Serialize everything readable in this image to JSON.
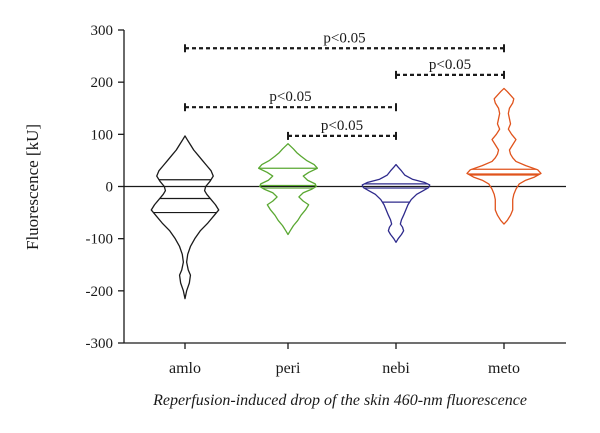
{
  "chart_data": {
    "type": "violin",
    "ylabel": "Fluorescence [kU]",
    "xlabel": "Reperfusion-induced drop of the skin 460-nm fluorescence",
    "ylim": [
      -300,
      300
    ],
    "yticks": [
      -300,
      -200,
      -100,
      0,
      100,
      200,
      300
    ],
    "categories": [
      "amlo",
      "peri",
      "nebi",
      "meto"
    ],
    "colors": {
      "amlo": "#1a1a1a",
      "peri": "#5aa832",
      "nebi": "#2e2a8c",
      "meto": "#e0531c"
    },
    "series": [
      {
        "category": "amlo",
        "min": -215,
        "max": 97,
        "quartiles": [
          -50,
          -23,
          13
        ],
        "density": [
          [
            -215,
            0
          ],
          [
            -200,
            1.5
          ],
          [
            -185,
            4
          ],
          [
            -170,
            5
          ],
          [
            -160,
            3
          ],
          [
            -145,
            1.5
          ],
          [
            -130,
            2.5
          ],
          [
            -115,
            5
          ],
          [
            -100,
            9
          ],
          [
            -85,
            14
          ],
          [
            -70,
            21
          ],
          [
            -55,
            27
          ],
          [
            -45,
            31
          ],
          [
            -35,
            28
          ],
          [
            -25,
            24
          ],
          [
            -15,
            20
          ],
          [
            -8,
            18
          ],
          [
            0,
            19
          ],
          [
            10,
            23
          ],
          [
            20,
            26
          ],
          [
            30,
            24
          ],
          [
            40,
            20
          ],
          [
            50,
            16
          ],
          [
            60,
            12
          ],
          [
            70,
            8
          ],
          [
            80,
            5
          ],
          [
            90,
            2
          ],
          [
            97,
            0
          ]
        ]
      },
      {
        "category": "peri",
        "min": -92,
        "max": 82,
        "quartiles": [
          -3,
          2,
          35
        ],
        "density": [
          [
            -92,
            0
          ],
          [
            -85,
            2
          ],
          [
            -75,
            5
          ],
          [
            -65,
            9
          ],
          [
            -55,
            12
          ],
          [
            -45,
            16
          ],
          [
            -35,
            19
          ],
          [
            -28,
            14
          ],
          [
            -20,
            10
          ],
          [
            -12,
            14
          ],
          [
            -5,
            22
          ],
          [
            0,
            26
          ],
          [
            5,
            25
          ],
          [
            12,
            18
          ],
          [
            20,
            14
          ],
          [
            27,
            19
          ],
          [
            35,
            27
          ],
          [
            42,
            24
          ],
          [
            50,
            17
          ],
          [
            58,
            12
          ],
          [
            65,
            8
          ],
          [
            72,
            5
          ],
          [
            78,
            2
          ],
          [
            82,
            0
          ]
        ]
      },
      {
        "category": "nebi",
        "min": -107,
        "max": 42,
        "quartiles": [
          -30,
          -3,
          5
        ],
        "density": [
          [
            -107,
            0
          ],
          [
            -100,
            2
          ],
          [
            -92,
            5
          ],
          [
            -85,
            7
          ],
          [
            -78,
            6
          ],
          [
            -72,
            4
          ],
          [
            -64,
            5
          ],
          [
            -55,
            7
          ],
          [
            -45,
            9
          ],
          [
            -35,
            11
          ],
          [
            -25,
            14
          ],
          [
            -15,
            19
          ],
          [
            -8,
            25
          ],
          [
            -2,
            30
          ],
          [
            3,
            31
          ],
          [
            8,
            26
          ],
          [
            14,
            15
          ],
          [
            22,
            8
          ],
          [
            30,
            5
          ],
          [
            37,
            2
          ],
          [
            42,
            0
          ]
        ]
      },
      {
        "category": "meto",
        "min": -72,
        "max": 188,
        "quartiles": [
          22,
          24,
          33
        ],
        "density": [
          [
            -72,
            0
          ],
          [
            -65,
            3
          ],
          [
            -55,
            6
          ],
          [
            -45,
            8
          ],
          [
            -35,
            8
          ],
          [
            -25,
            8
          ],
          [
            -15,
            9
          ],
          [
            -5,
            11
          ],
          [
            5,
            14
          ],
          [
            12,
            20
          ],
          [
            18,
            28
          ],
          [
            25,
            34
          ],
          [
            32,
            31
          ],
          [
            40,
            20
          ],
          [
            48,
            11
          ],
          [
            55,
            8
          ],
          [
            62,
            6
          ],
          [
            70,
            5
          ],
          [
            80,
            8
          ],
          [
            90,
            11
          ],
          [
            100,
            7
          ],
          [
            110,
            4
          ],
          [
            120,
            6
          ],
          [
            130,
            5
          ],
          [
            140,
            4
          ],
          [
            150,
            5
          ],
          [
            160,
            8
          ],
          [
            168,
            9
          ],
          [
            175,
            6
          ],
          [
            182,
            3
          ],
          [
            188,
            0
          ]
        ]
      }
    ],
    "annotations": [
      {
        "from": "amlo",
        "to": "meto",
        "y": 265,
        "label": "p<0.05"
      },
      {
        "from": "nebi",
        "to": "meto",
        "y": 214,
        "label": "p<0.05"
      },
      {
        "from": "amlo",
        "to": "nebi",
        "y": 152,
        "label": "p<0.05"
      },
      {
        "from": "peri",
        "to": "nebi",
        "y": 97,
        "label": "p<0.05"
      }
    ],
    "reference_line": 0
  }
}
